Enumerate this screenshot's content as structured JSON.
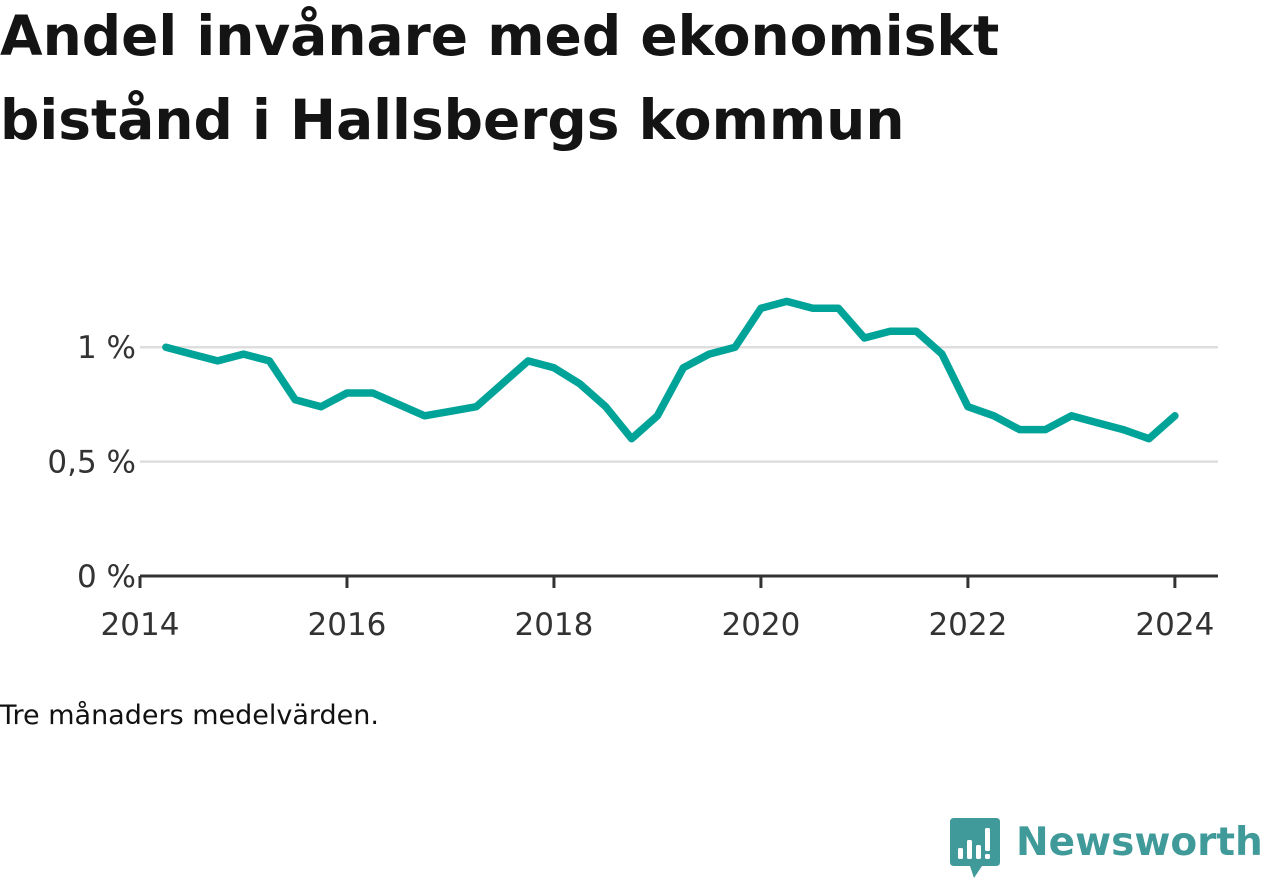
{
  "title": "Andel invånare med ekonomiskt bistånd i Hallsbergs kommun",
  "note": "Tre månaders medelvärden.",
  "brand": {
    "name": "Newsworthy",
    "icon": "newsworthy-chart-bubble-icon",
    "color": "#3f9a99"
  },
  "chart_data": {
    "type": "line",
    "title": "Andel invånare med ekonomiskt bistånd i Hallsbergs kommun",
    "xlabel": "",
    "ylabel": "",
    "x_tick_labels": [
      "2014",
      "2016",
      "2018",
      "2020",
      "2022",
      "2024"
    ],
    "y_tick_labels": [
      "0 %",
      "0,5 %",
      "1 %"
    ],
    "y_tick_values": [
      0,
      0.5,
      1
    ],
    "ylim": [
      0,
      1.25
    ],
    "xlim": [
      "2014-01",
      "2024-06"
    ],
    "grid": "horizontal",
    "line_color": "#00a398",
    "series": [
      {
        "x": [
          "2014-04",
          "2014-07",
          "2014-10",
          "2015-01",
          "2015-04",
          "2015-07",
          "2015-10",
          "2016-01",
          "2016-04",
          "2016-07",
          "2016-10",
          "2017-01",
          "2017-04",
          "2017-07",
          "2017-10",
          "2018-01",
          "2018-04",
          "2018-07",
          "2018-10",
          "2019-01",
          "2019-04",
          "2019-07",
          "2019-10",
          "2020-01",
          "2020-04",
          "2020-07",
          "2020-10",
          "2021-01",
          "2021-04",
          "2021-07",
          "2021-10",
          "2022-01",
          "2022-04",
          "2022-07",
          "2022-10",
          "2023-01",
          "2023-04",
          "2023-07",
          "2023-10",
          "2024-01"
        ],
        "values": [
          1.0,
          0.97,
          0.94,
          0.97,
          0.94,
          0.77,
          0.74,
          0.8,
          0.8,
          0.75,
          0.7,
          0.72,
          0.74,
          0.84,
          0.94,
          0.91,
          0.84,
          0.74,
          0.6,
          0.7,
          0.91,
          0.97,
          1.0,
          1.17,
          1.2,
          1.17,
          1.17,
          1.04,
          1.07,
          1.07,
          0.97,
          0.74,
          0.7,
          0.64,
          0.64,
          0.7,
          0.67,
          0.64,
          0.6,
          0.7
        ]
      }
    ]
  }
}
